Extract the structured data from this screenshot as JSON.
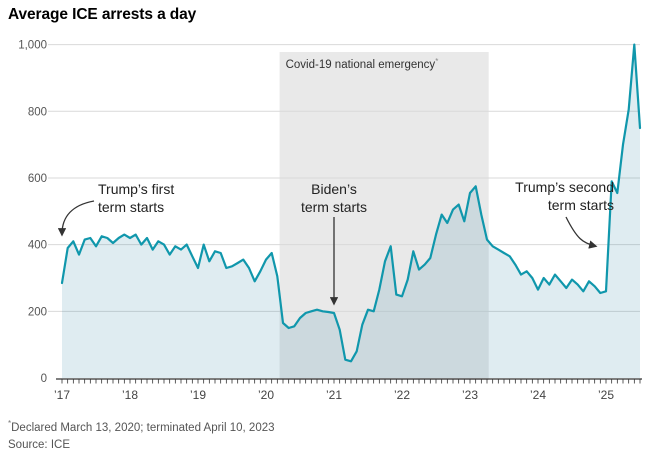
{
  "title": "Average ICE arrests a day",
  "footnote_marker": "*",
  "footnote": "Declared March 13, 2020; terminated April 10, 2023",
  "source": "Source: ICE",
  "chart_data": {
    "type": "area",
    "title": "Average ICE arrests a day",
    "unit": "average arrests per day",
    "x_frequency": "monthly",
    "x_start": "2017-01",
    "x_end": "2025-07",
    "values": [
      285,
      390,
      410,
      370,
      415,
      420,
      395,
      425,
      420,
      405,
      420,
      430,
      420,
      430,
      400,
      420,
      385,
      410,
      400,
      370,
      395,
      385,
      400,
      365,
      330,
      400,
      350,
      380,
      375,
      330,
      335,
      345,
      355,
      330,
      290,
      320,
      355,
      375,
      305,
      165,
      150,
      155,
      180,
      195,
      200,
      205,
      200,
      198,
      195,
      145,
      55,
      50,
      80,
      160,
      205,
      200,
      265,
      350,
      395,
      250,
      245,
      295,
      380,
      325,
      340,
      360,
      430,
      490,
      465,
      505,
      520,
      470,
      555,
      575,
      490,
      415,
      395,
      385,
      375,
      365,
      340,
      310,
      320,
      300,
      265,
      300,
      280,
      310,
      290,
      270,
      295,
      280,
      260,
      290,
      275,
      255,
      260,
      590,
      555,
      700,
      805,
      1000,
      750
    ],
    "ylim": [
      0,
      1000
    ],
    "yticks": [
      0,
      200,
      400,
      600,
      800,
      1000
    ],
    "ytick_labels": [
      "0",
      "200",
      "400",
      "600",
      "800",
      "1,000"
    ],
    "xtick_labels": [
      "’17",
      "’18",
      "’19",
      "’20",
      "’21",
      "’22",
      "’23",
      "’24",
      "’25"
    ],
    "grid": true,
    "legend": "none",
    "band": {
      "label": "Covid-19 national emergency",
      "marker": "*",
      "start": "2020-03-13",
      "end": "2023-04-10"
    },
    "annotations": [
      {
        "lines": [
          "Trump’s first",
          "term starts"
        ],
        "points_to": "2017-01"
      },
      {
        "lines": [
          "Biden’s",
          "term starts"
        ],
        "points_to": "2021-01"
      },
      {
        "lines": [
          "Trump’s second",
          "term starts"
        ],
        "points_to": "2025-01"
      }
    ],
    "colors": {
      "line": "#1097ac",
      "area": "rgba(40,125,160,0.15)",
      "band": "#e9e9e9",
      "grid": "#d9d9d9",
      "axis": "#333333",
      "annotation": "#222222",
      "tick_text": "#555555"
    }
  }
}
